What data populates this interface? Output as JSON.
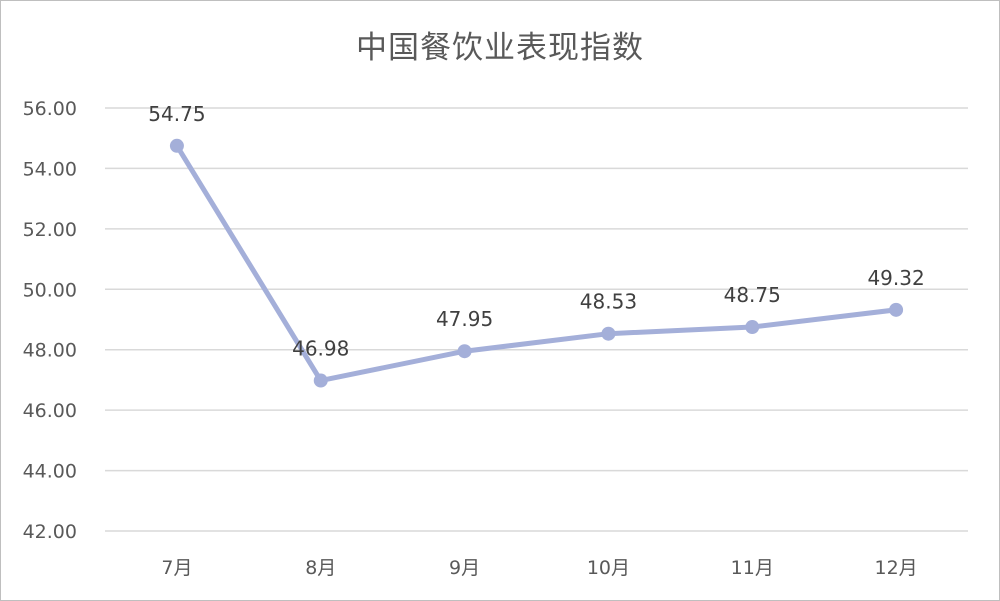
{
  "chart_data": {
    "type": "line",
    "title": "中国餐饮业表现指数",
    "categories": [
      "7月",
      "8月",
      "9月",
      "10月",
      "11月",
      "12月"
    ],
    "series": [
      {
        "values": [
          54.75,
          46.98,
          47.95,
          48.53,
          48.75,
          49.32
        ]
      }
    ],
    "data_labels": [
      "54.75",
      "46.98",
      "47.95",
      "48.53",
      "48.75",
      "49.32"
    ],
    "yticks": [
      "42.00",
      "44.00",
      "46.00",
      "48.00",
      "50.00",
      "52.00",
      "54.00",
      "56.00"
    ],
    "ylim": [
      42,
      56
    ],
    "grid": true,
    "legend": "none",
    "colors": {
      "line": "#a4afd9",
      "grid": "#d9d9d9",
      "text": "#595959"
    }
  }
}
